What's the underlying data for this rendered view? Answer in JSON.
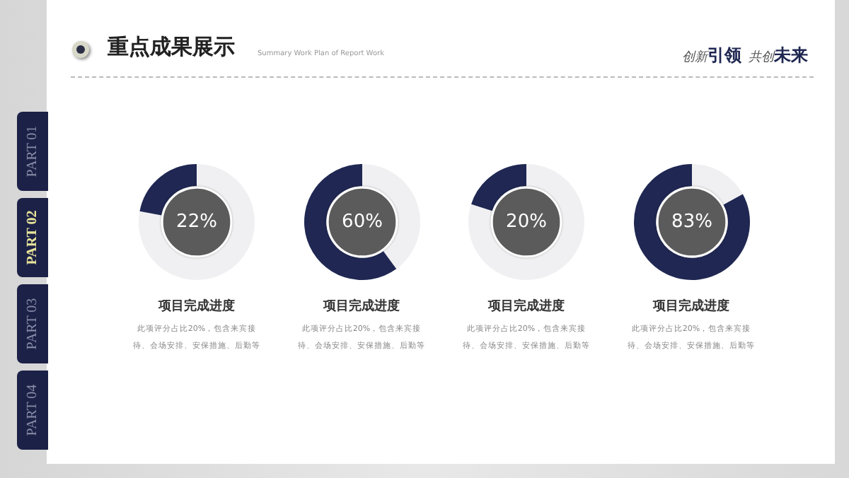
{
  "chart_data": [
    {
      "type": "other",
      "title": "重点成果展示",
      "subtitle": "Summary Work Plan of Report Work",
      "annotations": [
        "创新",
        "引领",
        "共创",
        "未来",
        "PART 01",
        "PART 02",
        "PART 03",
        "PART 04"
      ]
    },
    {
      "type": "donut",
      "title": "项目完成进度",
      "categories": [
        null,
        null
      ],
      "values": [
        78,
        22
      ],
      "colors": [
        "#f0f0f2",
        "#1f2752"
      ],
      "value_labels": [
        null,
        "22%"
      ],
      "legend": false,
      "annotations": [
        "此项评分占比20%，包含来宾接待、会场安排、安保措施、后勤等"
      ]
    },
    {
      "type": "donut",
      "title": "项目完成进度",
      "categories": [
        null,
        null
      ],
      "values": [
        40,
        60
      ],
      "colors": [
        "#f0f0f2",
        "#1f2752"
      ],
      "value_labels": [
        null,
        "60%"
      ],
      "legend": false,
      "annotations": [
        "此项评分占比20%，包含来宾接待、会场安排、安保措施、后勤等"
      ]
    },
    {
      "type": "donut",
      "title": "项目完成进度",
      "categories": [
        null,
        null
      ],
      "values": [
        80,
        20
      ],
      "colors": [
        "#f0f0f2",
        "#1f2752"
      ],
      "value_labels": [
        null,
        "20%"
      ],
      "legend": false,
      "annotations": [
        "此项评分占比20%，包含来宾接待、会场安排、安保措施、后勤等"
      ]
    },
    {
      "type": "donut",
      "title": "项目完成进度",
      "categories": [
        null,
        null
      ],
      "values": [
        17,
        83
      ],
      "colors": [
        "#f0f0f2",
        "#1f2752"
      ],
      "value_labels": [
        null,
        "83%"
      ],
      "legend": false,
      "annotations": [
        "此项评分占比20%，包含来宾接待、会场安排、安保措施、后勤等"
      ]
    }
  ]
}
